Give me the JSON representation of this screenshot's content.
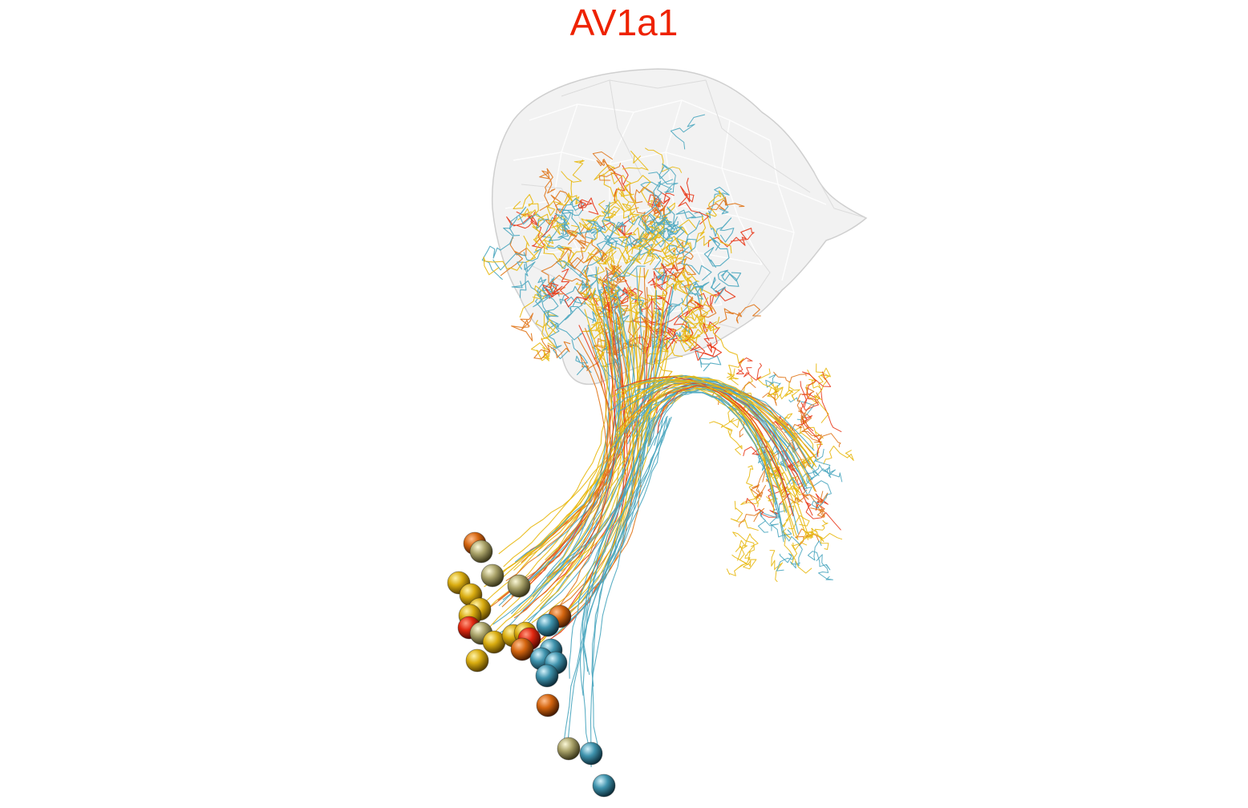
{
  "title": "AV1a1",
  "colors": {
    "title": "#ee2200",
    "mesh_fill": "#eeeeee",
    "mesh_stroke": "#cfcfcf",
    "red": "#e8381a",
    "orange": "#e0751a",
    "yellow": "#e8b80e",
    "blue": "#4aa6bf",
    "olive": "#b9b27a"
  }
}
